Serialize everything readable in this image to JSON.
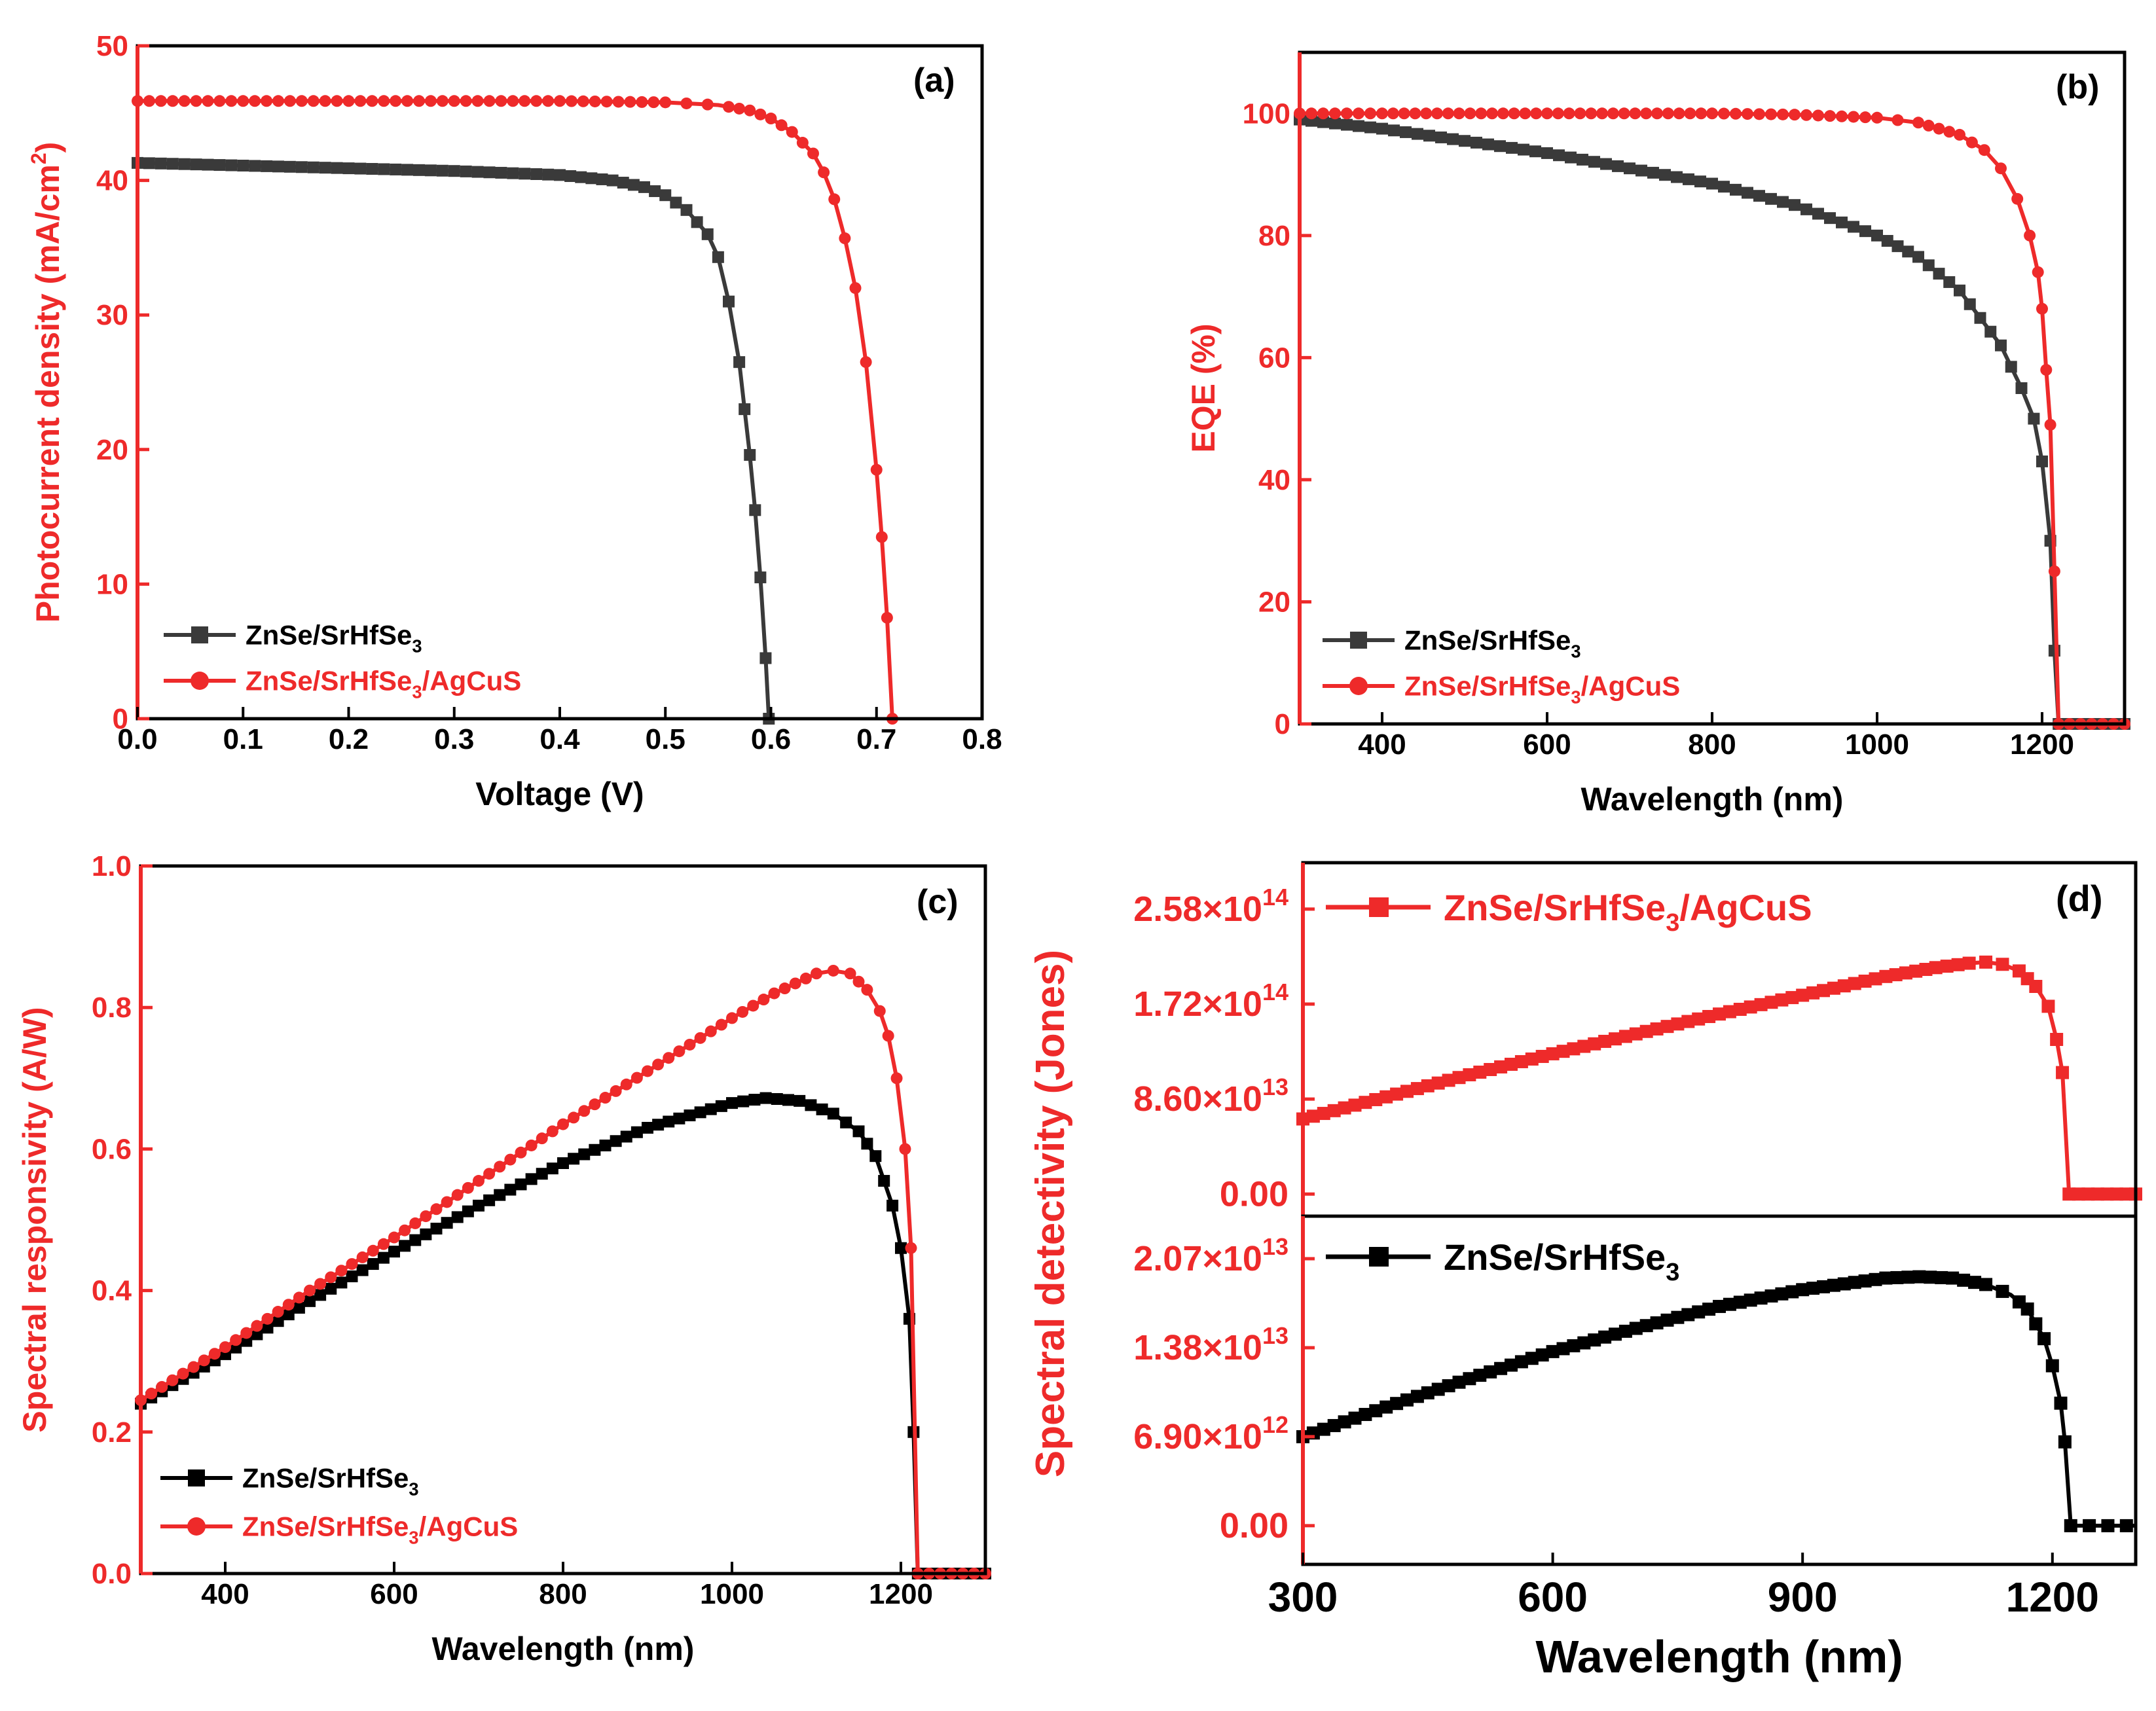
{
  "colors": {
    "red": "#ee2a2a",
    "gray": "#3a3a3a",
    "black": "#000000"
  },
  "chart_data": [
    {
      "panel": "(a)",
      "type": "line",
      "xlabel": "Voltage (V)",
      "ylabel": "Photocurrent density (mA/cm²)",
      "ylabel_main": "Photocurrent density (mA/cm",
      "ylabel_sup": "2",
      "ylabel_end": ")",
      "xlim": [
        0,
        0.8
      ],
      "ylim": [
        0,
        50
      ],
      "xticks": [
        0.0,
        0.1,
        0.2,
        0.3,
        0.4,
        0.5,
        0.6,
        0.7,
        0.8
      ],
      "xtick_labels": [
        "0.0",
        "0.1",
        "0.2",
        "0.3",
        "0.4",
        "0.5",
        "0.6",
        "0.7",
        "0.8"
      ],
      "yticks": [
        0,
        10,
        20,
        30,
        40,
        50
      ],
      "ytick_labels": [
        "0",
        "10",
        "20",
        "30",
        "40",
        "50"
      ],
      "legend_position": "bottom-left",
      "series": [
        {
          "name": "ZnSe/SrHfSe₃",
          "label_main": "ZnSe/SrHfSe",
          "label_sub": "3",
          "label_end": "",
          "marker": "square",
          "color": "#3a3a3a",
          "x": [
            0.0,
            0.1,
            0.2,
            0.3,
            0.4,
            0.45,
            0.48,
            0.5,
            0.52,
            0.54,
            0.55,
            0.56,
            0.57,
            0.575,
            0.58,
            0.585,
            0.59,
            0.595,
            0.598
          ],
          "y": [
            41.3,
            41.1,
            40.9,
            40.7,
            40.4,
            40.0,
            39.5,
            38.9,
            37.8,
            36.0,
            34.3,
            31.0,
            26.5,
            23.0,
            19.6,
            15.5,
            10.5,
            4.5,
            0.0
          ]
        },
        {
          "name": "ZnSe/SrHfSe₃/AgCuS",
          "label_main": "ZnSe/SrHfSe",
          "label_sub": "3",
          "label_end": "/AgCuS",
          "marker": "circle",
          "color": "#ee2a2a",
          "x": [
            0.0,
            0.1,
            0.2,
            0.3,
            0.4,
            0.5,
            0.55,
            0.58,
            0.6,
            0.62,
            0.64,
            0.65,
            0.66,
            0.67,
            0.68,
            0.69,
            0.7,
            0.705,
            0.71,
            0.715
          ],
          "y": [
            45.9,
            45.9,
            45.9,
            45.9,
            45.9,
            45.8,
            45.6,
            45.2,
            44.6,
            43.6,
            42.0,
            40.6,
            38.6,
            35.7,
            32.0,
            26.5,
            18.5,
            13.5,
            7.5,
            0.0
          ]
        }
      ]
    },
    {
      "panel": "(b)",
      "type": "line",
      "xlabel": "Wavelength (nm)",
      "ylabel": "EQE (%)",
      "xlim": [
        300,
        1300
      ],
      "ylim": [
        0,
        110
      ],
      "xticks": [
        400,
        600,
        800,
        1000,
        1200
      ],
      "xtick_labels": [
        "400",
        "600",
        "800",
        "1000",
        "1200"
      ],
      "yticks": [
        0,
        20,
        40,
        60,
        80,
        100
      ],
      "ytick_labels": [
        "0",
        "20",
        "40",
        "60",
        "80",
        "100"
      ],
      "legend_position": "bottom-left",
      "series": [
        {
          "name": "ZnSe/SrHfSe₃",
          "label_main": "ZnSe/SrHfSe",
          "label_sub": "3",
          "label_end": "",
          "marker": "square",
          "color": "#3a3a3a",
          "x": [
            300,
            400,
            500,
            600,
            700,
            800,
            900,
            1000,
            1050,
            1100,
            1150,
            1175,
            1190,
            1200,
            1210,
            1215,
            1220,
            1300
          ],
          "y": [
            99,
            97.5,
            95.5,
            93.5,
            91,
            88.5,
            85,
            80,
            76.5,
            71,
            62,
            55,
            50,
            43,
            30,
            12,
            0,
            0
          ]
        },
        {
          "name": "ZnSe/SrHfSe₃/AgCuS",
          "label_main": "ZnSe/SrHfSe",
          "label_sub": "3",
          "label_end": "/AgCuS",
          "marker": "circle",
          "color": "#ee2a2a",
          "x": [
            300,
            400,
            600,
            800,
            900,
            1000,
            1050,
            1100,
            1130,
            1150,
            1170,
            1185,
            1195,
            1200,
            1205,
            1210,
            1215,
            1220,
            1300
          ],
          "y": [
            100,
            100,
            100,
            100,
            99.8,
            99.3,
            98.5,
            96.5,
            94,
            91,
            86,
            80,
            74,
            68,
            58,
            49,
            25,
            0,
            0
          ]
        }
      ]
    },
    {
      "panel": "(c)",
      "type": "line",
      "xlabel": "Wavelength (nm)",
      "ylabel": "Spectral responsivity (A/W)",
      "xlim": [
        300,
        1300
      ],
      "ylim": [
        0,
        1.0
      ],
      "xticks": [
        400,
        600,
        800,
        1000,
        1200
      ],
      "xtick_labels": [
        "400",
        "600",
        "800",
        "1000",
        "1200"
      ],
      "yticks": [
        0.0,
        0.2,
        0.4,
        0.6,
        0.8,
        1.0
      ],
      "ytick_labels": [
        "0.0",
        "0.2",
        "0.4",
        "0.6",
        "0.8",
        "1.0"
      ],
      "legend_position": "bottom-left",
      "series": [
        {
          "name": "ZnSe/SrHfSe₃",
          "label_main": "ZnSe/SrHfSe",
          "label_sub": "3",
          "label_end": "",
          "marker": "square",
          "color": "#000000",
          "x": [
            300,
            400,
            500,
            600,
            700,
            800,
            900,
            1000,
            1040,
            1080,
            1120,
            1150,
            1170,
            1190,
            1200,
            1210,
            1215,
            1220,
            1300
          ],
          "y": [
            0.24,
            0.31,
            0.385,
            0.455,
            0.52,
            0.58,
            0.63,
            0.665,
            0.672,
            0.668,
            0.65,
            0.625,
            0.59,
            0.52,
            0.46,
            0.36,
            0.2,
            0.0,
            0.0
          ]
        },
        {
          "name": "ZnSe/SrHfSe₃/AgCuS",
          "label_main": "ZnSe/SrHfSe",
          "label_sub": "3",
          "label_end": "/AgCuS",
          "marker": "circle",
          "color": "#ee2a2a",
          "x": [
            300,
            400,
            500,
            600,
            700,
            800,
            900,
            1000,
            1050,
            1100,
            1120,
            1140,
            1160,
            1175,
            1185,
            1195,
            1205,
            1212,
            1220,
            1300
          ],
          "y": [
            0.245,
            0.32,
            0.4,
            0.475,
            0.555,
            0.635,
            0.71,
            0.785,
            0.82,
            0.848,
            0.852,
            0.848,
            0.825,
            0.795,
            0.76,
            0.7,
            0.6,
            0.46,
            0.0,
            0.0
          ]
        }
      ]
    },
    {
      "panel": "(d)",
      "type": "line",
      "xlabel": "Wavelength (nm)",
      "ylabel": "Spectral detectivity (Jones)",
      "xlim": [
        300,
        1300
      ],
      "xticks": [
        300,
        600,
        900,
        1200
      ],
      "xtick_labels": [
        "300",
        "600",
        "900",
        "1200"
      ],
      "subplots": [
        {
          "ylim": [
            -20000000000000.0,
            300000000000000.0
          ],
          "yticks": [
            0,
            86000000000000.0,
            172000000000000.0,
            258000000000000.0
          ],
          "ytick_labels": [
            {
              "mantissa": "0.00",
              "exp": ""
            },
            {
              "mantissa": "8.60×10",
              "exp": "13"
            },
            {
              "mantissa": "1.72×10",
              "exp": "14"
            },
            {
              "mantissa": "2.58×10",
              "exp": "14"
            }
          ],
          "legend_position": "top-left",
          "series": [
            {
              "name": "ZnSe/SrHfSe₃/AgCuS",
              "label_main": "ZnSe/SrHfSe",
              "label_sub": "3",
              "label_end": "/AgCuS",
              "marker": "square",
              "color": "#ee2a2a",
              "x": [
                300,
                400,
                500,
                600,
                700,
                800,
                900,
                1000,
                1060,
                1100,
                1120,
                1140,
                1160,
                1180,
                1195,
                1205,
                1212,
                1220,
                1300
              ],
              "y": [
                68000000000000.0,
                88000000000000.0,
                108000000000000.0,
                127000000000000.0,
                145000000000000.0,
                163000000000000.0,
                180000000000000.0,
                197000000000000.0,
                205000000000000.0,
                209000000000000.0,
                210000000000000.0,
                208000000000000.0,
                202000000000000.0,
                188000000000000.0,
                170000000000000.0,
                140000000000000.0,
                110000000000000.0,
                0,
                0
              ]
            }
          ]
        },
        {
          "ylim": [
            -3000000000000.0,
            24000000000000.0
          ],
          "yticks": [
            0,
            6900000000000.0,
            13800000000000.0,
            20700000000000.0
          ],
          "ytick_labels": [
            {
              "mantissa": "0.00",
              "exp": ""
            },
            {
              "mantissa": "6.90×10",
              "exp": "12"
            },
            {
              "mantissa": "1.38×10",
              "exp": "13"
            },
            {
              "mantissa": "2.07×10",
              "exp": "13"
            }
          ],
          "legend_position": "top-left",
          "series": [
            {
              "name": "ZnSe/SrHfSe₃",
              "label_main": "ZnSe/SrHfSe",
              "label_sub": "3",
              "label_end": "",
              "marker": "square",
              "color": "#000000",
              "x": [
                300,
                400,
                500,
                600,
                700,
                800,
                900,
                1000,
                1040,
                1080,
                1120,
                1150,
                1170,
                1190,
                1200,
                1210,
                1215,
                1222,
                1300
              ],
              "y": [
                6900000000000.0,
                9200000000000.0,
                11400000000000.0,
                13500000000000.0,
                15300000000000.0,
                17000000000000.0,
                18300000000000.0,
                19200000000000.0,
                19300000000000.0,
                19200000000000.0,
                18700000000000.0,
                17900000000000.0,
                16800000000000.0,
                14500000000000.0,
                12400000000000.0,
                9500000000000.0,
                6500000000000.0,
                0,
                0
              ]
            }
          ]
        }
      ]
    }
  ]
}
